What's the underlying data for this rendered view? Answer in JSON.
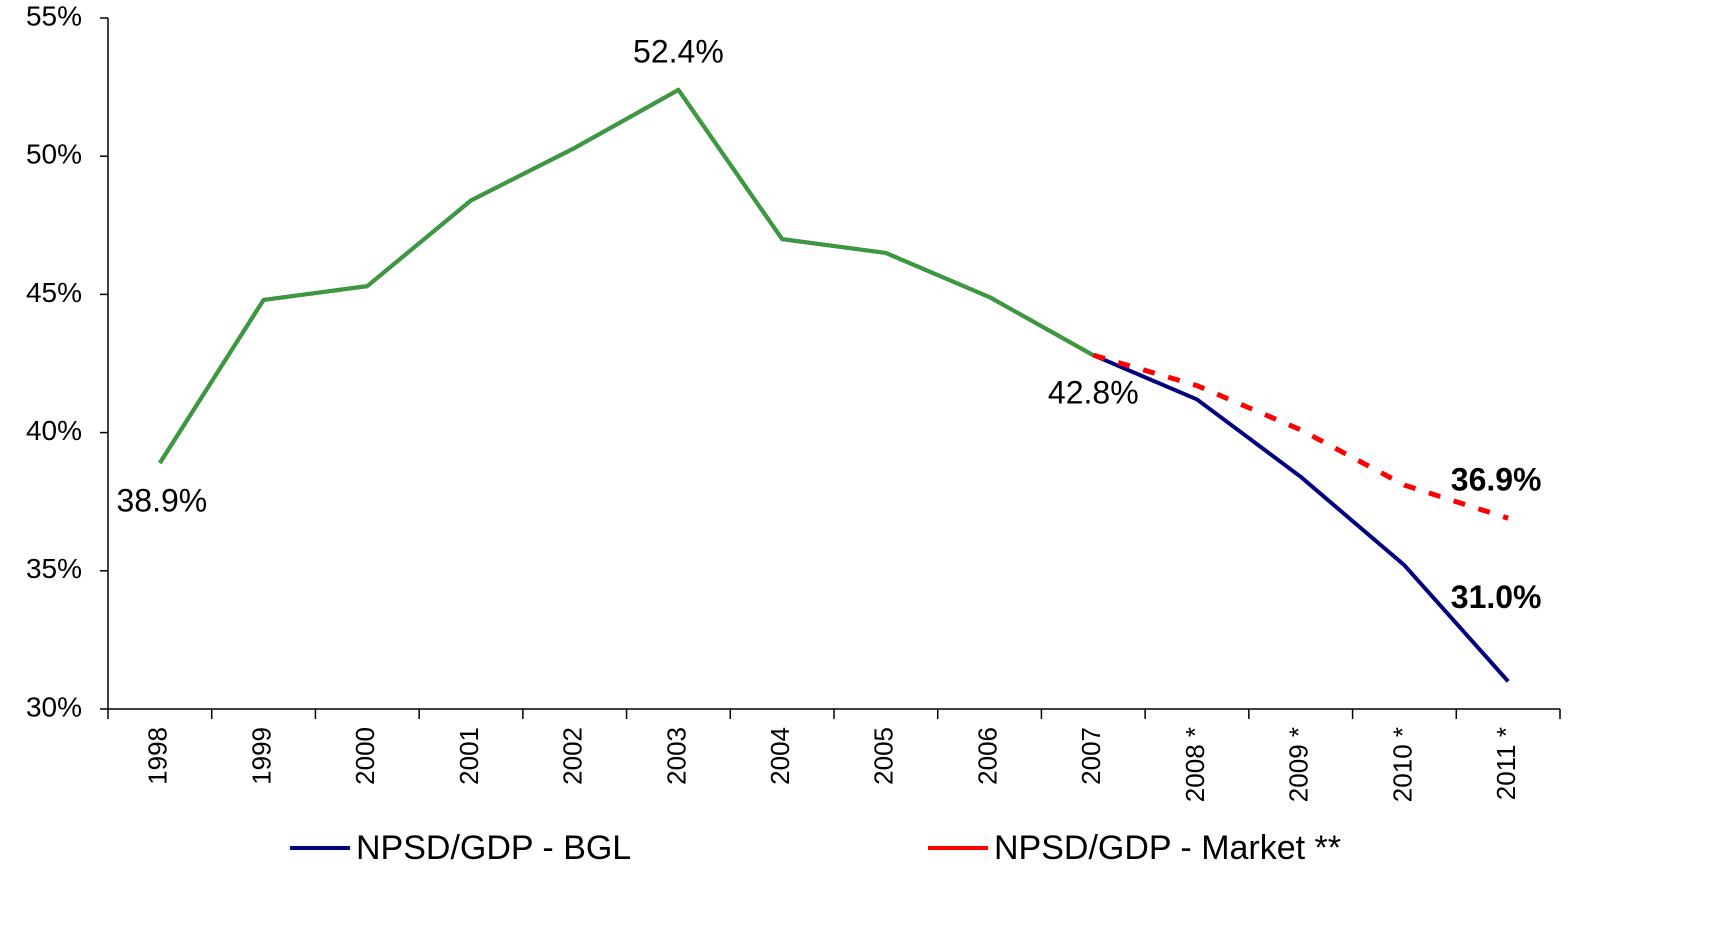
{
  "chart_data": {
    "type": "line",
    "categories": [
      "1998",
      "1999",
      "2000",
      "2001",
      "2002",
      "2003",
      "2004",
      "2005",
      "2006",
      "2007",
      "2008 *",
      "2009 *",
      "2010 *",
      "2011 *"
    ],
    "series": [
      {
        "name": "NPSD/GDP - BGL",
        "color": "#000080",
        "label_color": "#0000ff",
        "values": [
          38.9,
          44.8,
          45.3,
          48.4,
          50.3,
          52.4,
          47.0,
          46.5,
          44.9,
          42.8,
          41.2,
          38.4,
          35.2,
          31.0
        ],
        "value_labels": [
          null,
          null,
          null,
          null,
          null,
          null,
          null,
          null,
          null,
          null,
          null,
          null,
          null,
          "31.0%"
        ]
      },
      {
        "name": "NPSD/GDP - Market **",
        "color": "#ff0000",
        "label_color": "#ff0000",
        "dashed": true,
        "values": [
          null,
          null,
          null,
          null,
          null,
          null,
          null,
          null,
          null,
          42.8,
          41.7,
          40.1,
          38.1,
          36.9
        ],
        "value_labels": [
          null,
          null,
          null,
          null,
          null,
          null,
          null,
          null,
          null,
          null,
          null,
          null,
          null,
          "36.9%"
        ]
      },
      {
        "color": "#3c9a3c",
        "label_color": "#000000",
        "values": [
          38.9,
          44.8,
          45.3,
          48.4,
          50.3,
          52.4,
          47.0,
          46.5,
          44.9,
          42.8,
          null,
          null,
          null,
          null
        ],
        "value_labels": [
          "38.9%",
          null,
          null,
          null,
          null,
          "52.4%",
          null,
          null,
          null,
          "42.8%",
          null,
          null,
          null,
          null
        ]
      }
    ],
    "ylim": [
      30,
      55
    ],
    "yticks": [
      {
        "value": 30,
        "label": "30%"
      },
      {
        "value": 35,
        "label": "35%"
      },
      {
        "value": 40,
        "label": "40%"
      },
      {
        "value": 45,
        "label": "45%"
      },
      {
        "value": 50,
        "label": "50%"
      },
      {
        "value": 55,
        "label": "55%"
      }
    ],
    "grid": false,
    "legend": "bottom"
  }
}
